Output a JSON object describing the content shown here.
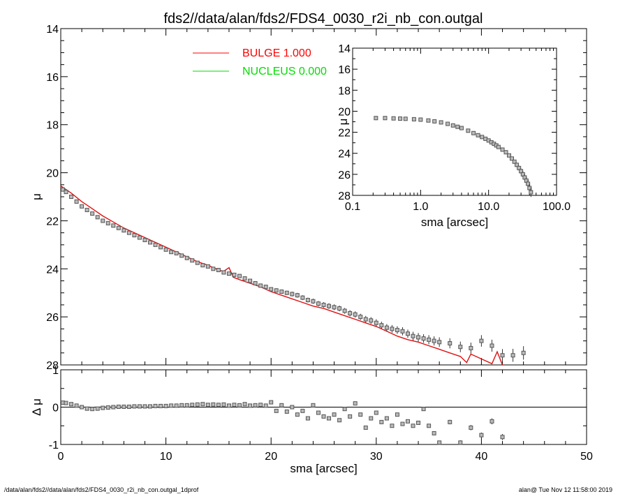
{
  "title": "fds2//data/alan/fds2/FDS4_0030_r2i_nb_con.outgal",
  "footer_left": "/data/alan/fds2//data/alan/fds2/FDS4_0030_r2i_nb_con.outgal_1dprof",
  "footer_right": "alan@  Tue Nov 12 11:58:00 2019",
  "colors": {
    "bulge": "#ff0000",
    "nucleus": "#00dd00",
    "points": "#555555",
    "model": "#e01010"
  },
  "legend": [
    {
      "label": "BULGE  1.000",
      "color": "#ff0000"
    },
    {
      "label": "NUCLEUS  0.000",
      "color": "#00dd00"
    }
  ],
  "chart_data": [
    {
      "type": "scatter",
      "panel": "main",
      "ylabel": "μ",
      "xlim": [
        0,
        50
      ],
      "ylim": [
        28,
        14
      ],
      "yticks": [
        "14",
        "16",
        "18",
        "20",
        "22",
        "24",
        "26",
        "28"
      ],
      "series": [
        {
          "kind": "observed",
          "x": [
            0.2,
            0.5,
            1.0,
            1.5,
            2.0,
            2.5,
            3.0,
            3.5,
            4.0,
            4.5,
            5.0,
            5.5,
            6.0,
            6.5,
            7.0,
            7.5,
            8.0,
            8.5,
            9.0,
            9.5,
            10.0,
            10.5,
            11.0,
            11.5,
            12.0,
            12.5,
            13.0,
            13.5,
            14.0,
            14.5,
            15.0,
            15.5,
            16.0,
            16.5,
            17.0,
            17.5,
            18.0,
            18.5,
            19.0,
            19.5,
            20.0,
            20.5,
            21.0,
            21.5,
            22.0,
            22.5,
            23.0,
            23.5,
            24.0,
            24.5,
            25.0,
            25.5,
            26.0,
            26.5,
            27.0,
            27.5,
            28.0,
            28.5,
            29.0,
            29.5,
            30.0,
            30.5,
            31.0,
            31.5,
            32.0,
            32.5,
            33.0,
            33.5,
            34.0,
            34.5,
            35.0,
            35.5,
            36.0,
            37.0,
            38.0,
            39.0,
            40.0,
            41.0,
            42.0,
            43.0,
            44.0
          ],
          "y": [
            20.7,
            20.8,
            21.0,
            21.2,
            21.4,
            21.55,
            21.7,
            21.85,
            22.0,
            22.1,
            22.2,
            22.3,
            22.4,
            22.5,
            22.6,
            22.7,
            22.8,
            22.9,
            23.0,
            23.1,
            23.2,
            23.3,
            23.35,
            23.45,
            23.55,
            23.65,
            23.75,
            23.85,
            23.9,
            24.0,
            24.05,
            24.15,
            24.2,
            24.25,
            24.3,
            24.4,
            24.5,
            24.6,
            24.7,
            24.75,
            24.85,
            24.9,
            24.95,
            25.0,
            25.05,
            25.1,
            25.2,
            25.3,
            25.35,
            25.45,
            25.5,
            25.55,
            25.6,
            25.65,
            25.75,
            25.85,
            25.9,
            26.0,
            26.1,
            26.15,
            26.25,
            26.35,
            26.45,
            26.5,
            26.55,
            26.6,
            26.7,
            26.8,
            26.85,
            26.9,
            26.95,
            27.0,
            27.05,
            27.1,
            27.25,
            27.3,
            27.0,
            27.2,
            27.6,
            27.6,
            27.5
          ],
          "yerr": [
            0.02,
            0.02,
            0.02,
            0.02,
            0.02,
            0.02,
            0.02,
            0.02,
            0.02,
            0.02,
            0.03,
            0.03,
            0.03,
            0.03,
            0.03,
            0.03,
            0.03,
            0.03,
            0.04,
            0.04,
            0.04,
            0.04,
            0.04,
            0.05,
            0.05,
            0.05,
            0.05,
            0.05,
            0.06,
            0.06,
            0.06,
            0.06,
            0.06,
            0.07,
            0.07,
            0.07,
            0.08,
            0.08,
            0.08,
            0.08,
            0.08,
            0.09,
            0.09,
            0.09,
            0.1,
            0.1,
            0.1,
            0.1,
            0.11,
            0.11,
            0.11,
            0.12,
            0.12,
            0.12,
            0.12,
            0.13,
            0.13,
            0.13,
            0.14,
            0.14,
            0.15,
            0.15,
            0.15,
            0.16,
            0.16,
            0.17,
            0.17,
            0.18,
            0.18,
            0.18,
            0.19,
            0.19,
            0.2,
            0.21,
            0.22,
            0.23,
            0.24,
            0.25,
            0.26,
            0.27,
            0.28
          ]
        },
        {
          "kind": "model",
          "name": "BULGE",
          "x": [
            0.0,
            1.0,
            2.0,
            3.0,
            4.0,
            5.0,
            6.0,
            7.0,
            8.0,
            9.0,
            10.0,
            11.0,
            12.0,
            13.0,
            14.0,
            15.0,
            15.5,
            16.0,
            16.4,
            17.0,
            18.0,
            19.0,
            20.0,
            21.0,
            22.0,
            23.0,
            24.0,
            25.0,
            26.0,
            27.0,
            28.0,
            29.0,
            30.0,
            31.0,
            32.0,
            33.0,
            34.0,
            35.0,
            36.0,
            37.0,
            38.0,
            38.6,
            39.0,
            40.0,
            41.0,
            41.5,
            42.0
          ],
          "y": [
            20.55,
            20.85,
            21.2,
            21.5,
            21.8,
            22.05,
            22.3,
            22.5,
            22.7,
            22.9,
            23.1,
            23.3,
            23.5,
            23.7,
            23.85,
            24.05,
            24.1,
            23.95,
            24.35,
            24.45,
            24.6,
            24.75,
            24.95,
            25.1,
            25.25,
            25.4,
            25.55,
            25.65,
            25.8,
            25.95,
            26.1,
            26.25,
            26.4,
            26.6,
            26.8,
            26.95,
            27.05,
            27.2,
            27.35,
            27.5,
            27.65,
            27.9,
            27.55,
            27.75,
            27.95,
            27.45,
            28.0
          ]
        }
      ]
    },
    {
      "type": "scatter",
      "panel": "residual",
      "xlabel": "sma [arcsec]",
      "ylabel": "Δ μ",
      "xlim": [
        0,
        50
      ],
      "ylim": [
        -1,
        1
      ],
      "xticks": [
        "0",
        "10",
        "20",
        "30",
        "40",
        "50"
      ],
      "yticks": [
        "1",
        "0",
        "-1"
      ],
      "series": [
        {
          "kind": "residual",
          "x": [
            0.2,
            0.5,
            1.0,
            1.5,
            2.0,
            2.5,
            3.0,
            3.5,
            4.0,
            4.5,
            5.0,
            5.5,
            6.0,
            6.5,
            7.0,
            7.5,
            8.0,
            8.5,
            9.0,
            9.5,
            10.0,
            10.5,
            11.0,
            11.5,
            12.0,
            12.5,
            13.0,
            13.5,
            14.0,
            14.5,
            15.0,
            15.5,
            16.0,
            16.5,
            17.0,
            17.5,
            18.0,
            18.5,
            19.0,
            19.5,
            20.0,
            20.5,
            21.0,
            21.5,
            22.0,
            22.5,
            23.0,
            23.5,
            24.0,
            24.5,
            25.0,
            25.5,
            26.0,
            26.5,
            27.0,
            27.5,
            28.0,
            28.5,
            29.0,
            29.5,
            30.0,
            30.5,
            31.0,
            31.5,
            32.0,
            32.5,
            33.0,
            33.5,
            34.0,
            34.5,
            35.0,
            35.5,
            36.0,
            37.0,
            38.0,
            39.0,
            40.0,
            41.0,
            42.0
          ],
          "y": [
            0.12,
            0.11,
            0.08,
            0.04,
            0.0,
            -0.04,
            -0.05,
            -0.04,
            -0.02,
            -0.01,
            0.0,
            0.01,
            0.01,
            0.01,
            0.02,
            0.02,
            0.02,
            0.02,
            0.03,
            0.03,
            0.03,
            0.04,
            0.04,
            0.05,
            0.05,
            0.06,
            0.07,
            0.08,
            0.06,
            0.07,
            0.06,
            0.07,
            0.04,
            0.06,
            0.05,
            0.08,
            0.04,
            0.05,
            0.06,
            0.04,
            0.13,
            -0.1,
            0.05,
            -0.12,
            0.0,
            -0.2,
            -0.1,
            -0.3,
            0.05,
            -0.15,
            -0.25,
            -0.3,
            -0.2,
            -0.35,
            -0.05,
            -0.25,
            0.1,
            -0.2,
            -0.55,
            -0.3,
            -0.15,
            -0.4,
            -0.3,
            -0.5,
            -0.2,
            -0.45,
            -0.38,
            -0.5,
            -0.42,
            -0.05,
            -0.5,
            -0.7,
            -0.95,
            -0.4,
            -0.95,
            -0.55,
            -0.75,
            -0.38,
            -0.8
          ],
          "yerr": [
            0.02,
            0.02,
            0.02,
            0.02,
            0.02,
            0.02,
            0.02,
            0.02,
            0.02,
            0.02,
            0.02,
            0.02,
            0.02,
            0.02,
            0.02,
            0.02,
            0.02,
            0.02,
            0.02,
            0.02,
            0.02,
            0.02,
            0.02,
            0.02,
            0.02,
            0.02,
            0.02,
            0.02,
            0.02,
            0.02,
            0.02,
            0.02,
            0.02,
            0.02,
            0.02,
            0.02,
            0.02,
            0.02,
            0.02,
            0.02,
            0.02,
            0.02,
            0.02,
            0.02,
            0.02,
            0.02,
            0.02,
            0.02,
            0.02,
            0.02,
            0.02,
            0.02,
            0.02,
            0.02,
            0.02,
            0.02,
            0.02,
            0.02,
            0.02,
            0.02,
            0.02,
            0.02,
            0.02,
            0.02,
            0.03,
            0.03,
            0.03,
            0.03,
            0.04,
            0.04,
            0.04,
            0.05,
            0.05,
            0.06,
            0.06,
            0.07,
            0.07,
            0.08,
            0.08
          ]
        }
      ]
    },
    {
      "type": "scatter",
      "panel": "inset",
      "xscale": "log",
      "xlabel": "sma [arcsec]",
      "ylabel": "μ",
      "xlim": [
        0.1,
        100.0
      ],
      "ylim": [
        28,
        14
      ],
      "xticks": [
        "0.1",
        "1.0",
        "10.0",
        "100.0"
      ],
      "yticks": [
        "14",
        "16",
        "18",
        "20",
        "22",
        "24",
        "26",
        "28"
      ],
      "series": [
        {
          "kind": "observed",
          "x": [
            0.22,
            0.3,
            0.4,
            0.5,
            0.6,
            0.8,
            1.0,
            1.3,
            1.6,
            2.0,
            2.5,
            3.0,
            3.5,
            4.0,
            5.0,
            6.0,
            7.0,
            8.0,
            9.0,
            10.0,
            11.0,
            12.0,
            13.0,
            14.0,
            16.0,
            18.0,
            20.0,
            22.0,
            24.0,
            26.0,
            28.0,
            30.0,
            32.0,
            34.0,
            36.0,
            38.0,
            40.0,
            42.0
          ],
          "y": [
            20.65,
            20.65,
            20.68,
            20.7,
            20.72,
            20.76,
            20.8,
            20.88,
            20.96,
            21.06,
            21.2,
            21.35,
            21.48,
            21.6,
            21.85,
            22.08,
            22.28,
            22.45,
            22.62,
            22.78,
            22.95,
            23.1,
            23.25,
            23.4,
            23.65,
            23.9,
            24.2,
            24.5,
            24.8,
            25.1,
            25.4,
            25.7,
            26.0,
            26.3,
            26.6,
            26.9,
            27.3,
            27.7
          ],
          "yerr": [
            0.02,
            0.02,
            0.02,
            0.02,
            0.02,
            0.02,
            0.02,
            0.02,
            0.02,
            0.02,
            0.02,
            0.02,
            0.02,
            0.02,
            0.03,
            0.03,
            0.03,
            0.03,
            0.04,
            0.04,
            0.05,
            0.05,
            0.06,
            0.07,
            0.08,
            0.1,
            0.12,
            0.15,
            0.18,
            0.2,
            0.22,
            0.25,
            0.28,
            0.3,
            0.33,
            0.36,
            0.4,
            0.45
          ]
        }
      ]
    }
  ]
}
